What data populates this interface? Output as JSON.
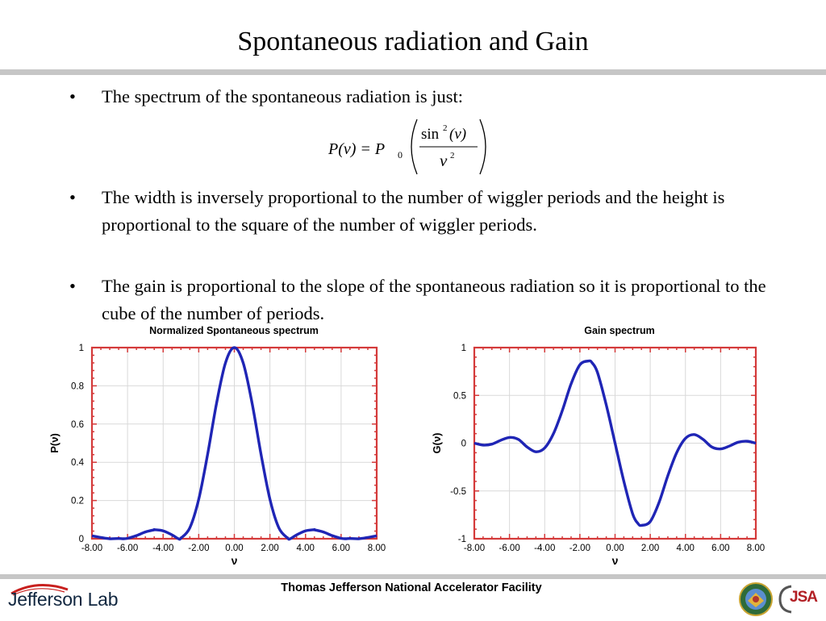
{
  "slide": {
    "title": "Spontaneous radiation and Gain",
    "bullets": [
      "The spectrum of the spontaneous radiation is just:",
      "The width is inversely proportional to the number of wiggler periods and the height is proportional to the square of the number of wiggler periods.",
      "The gain is proportional to the slope of the spontaneous radiation so it is  proportional to the cube of the number of periods."
    ],
    "bullet_glyph": "•",
    "formula": {
      "lhs": "P(ν) = P",
      "lhs_sub": "0",
      "numerator": "sin",
      "numerator_sup": "2",
      "numerator_arg": "(ν)",
      "denominator": "ν",
      "denominator_sup": "2"
    }
  },
  "footer": {
    "center_text": "Thomas Jefferson National Accelerator Facility",
    "logo_text": "Jefferson Lab",
    "jsa_logo_text": "JSA"
  },
  "colors": {
    "curve": "#1f25b5",
    "frame": "#d43a3a",
    "grid": "#d9d9d9",
    "rule": "#c6c6c6"
  },
  "chart_data": [
    {
      "type": "line",
      "title": "Normalized Spontaneous spectrum",
      "xlabel": "ν",
      "ylabel": "P(ν)",
      "xlim": [
        -8,
        8
      ],
      "ylim": [
        0,
        1
      ],
      "xticks": [
        "-8.00",
        "-6.00",
        "-4.00",
        "-2.00",
        "0.00",
        "2.00",
        "4.00",
        "6.00",
        "8.00"
      ],
      "yticks": [
        "0",
        "0.2",
        "0.4",
        "0.6",
        "0.8",
        "1"
      ],
      "grid": true,
      "series": [
        {
          "x": [
            -8,
            -7.5,
            -7,
            -6.5,
            -6.28,
            -6,
            -5.5,
            -5,
            -4.5,
            -4.49,
            -4,
            -3.5,
            -3.14,
            -3,
            -2.5,
            -2,
            -1.5,
            -1,
            -0.5,
            0,
            0.5,
            1,
            1.5,
            2,
            2.5,
            3,
            3.14,
            3.5,
            4,
            4.49,
            4.5,
            5,
            5.5,
            6,
            6.28,
            6.5,
            7,
            7.5,
            8
          ],
          "y": [
            0.0153,
            0.0067,
            0,
            0.0013,
            0,
            0.0021,
            0.0164,
            0.0353,
            0.0467,
            0.0472,
            0.0413,
            0.0201,
            0,
            0.0031,
            0.0573,
            0.2067,
            0.442,
            0.7081,
            0.9194,
            1,
            0.9194,
            0.7081,
            0.442,
            0.2067,
            0.0573,
            0.0031,
            0,
            0.0201,
            0.0413,
            0.0472,
            0.0467,
            0.0353,
            0.0164,
            0.0021,
            0,
            0.0013,
            0,
            0.0067,
            0.0153
          ]
        }
      ]
    },
    {
      "type": "line",
      "title": "Gain spectrum",
      "xlabel": "ν",
      "ylabel": "G(ν)",
      "xlim": [
        -8,
        8
      ],
      "ylim": [
        -1,
        1
      ],
      "xticks": [
        "-8.00",
        "-6.00",
        "-4.00",
        "-2.00",
        "0.00",
        "2.00",
        "4.00",
        "6.00",
        "8.00"
      ],
      "yticks": [
        "-1",
        "-0.5",
        "0",
        "0.5",
        "1"
      ],
      "grid": true,
      "series": [
        {
          "x": [
            -8,
            -7.5,
            -7,
            -6.5,
            -6,
            -5.5,
            -5,
            -4.5,
            -4,
            -3.5,
            -3,
            -2.5,
            -2,
            -1.5,
            -1.3,
            -1,
            -0.5,
            0,
            0.5,
            1,
            1.3,
            1.5,
            2,
            2.5,
            3,
            3.5,
            4,
            4.5,
            5,
            5.5,
            6,
            6.5,
            7,
            7.5,
            8
          ],
          "y": [
            0.0,
            -0.02,
            -0.01,
            0.03,
            0.06,
            0.04,
            -0.04,
            -0.09,
            -0.05,
            0.1,
            0.34,
            0.62,
            0.82,
            0.86,
            0.84,
            0.74,
            0.4,
            0.0,
            -0.4,
            -0.74,
            -0.84,
            -0.86,
            -0.82,
            -0.62,
            -0.34,
            -0.1,
            0.05,
            0.09,
            0.04,
            -0.04,
            -0.06,
            -0.03,
            0.01,
            0.02,
            0.0
          ]
        }
      ]
    }
  ]
}
